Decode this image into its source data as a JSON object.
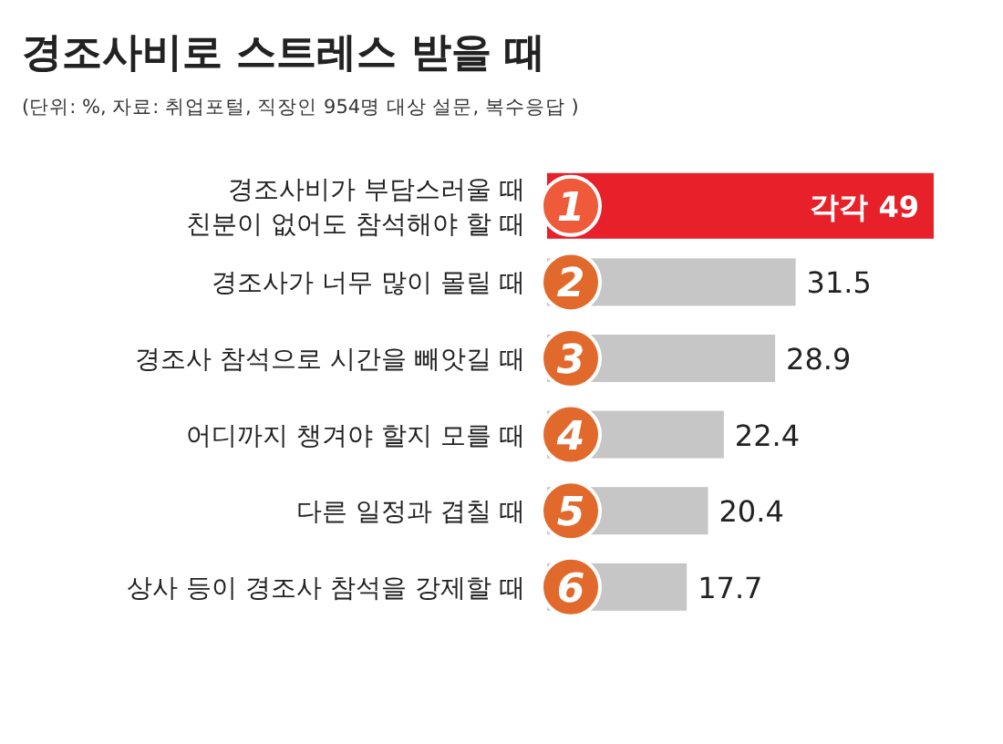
{
  "chart_data": {
    "type": "bar",
    "orientation": "horizontal",
    "title": "경조사비로 스트레스 받을 때",
    "subtitle": "(단위: %, 자료: 취업포털, 직장인 954명 대상 설문, 복수응답 )",
    "categories": [
      "경조사비가 부담스러울 때\n친분이 없어도 참석해야 할 때",
      "경조사가 너무 많이 몰릴 때",
      "경조사 참석으로 시간을 빼앗길 때",
      "어디까지 챙겨야 할지 모를 때",
      "다른 일정과 겹칠 때",
      "상사 등이 경조사 참석을 강제할 때"
    ],
    "values": [
      49,
      31.5,
      28.9,
      22.4,
      20.4,
      17.7
    ],
    "value_labels": [
      "각각 49",
      "31.5",
      "28.9",
      "22.4",
      "20.4",
      "17.7"
    ],
    "colors": [
      "#e8202a",
      "#c6c6c6",
      "#c6c6c6",
      "#c6c6c6",
      "#c6c6c6",
      "#c6c6c6"
    ],
    "annotations": [
      {
        "text": "1",
        "y": "경조사비가 부담스러울 때\n친분이 없어도 참석해야 할 때"
      },
      {
        "text": "2",
        "y": "경조사가 너무 많이 몰릴 때"
      },
      {
        "text": "3",
        "y": "경조사 참석으로 시간을 빼앗길 때"
      },
      {
        "text": "4",
        "y": "어디까지 챙겨야 할지 모를 때"
      },
      {
        "text": "5",
        "y": "다른 일정과 겹칠 때"
      },
      {
        "text": "6",
        "y": "상사 등이 경조사 참석을 강제할 때"
      }
    ]
  }
}
